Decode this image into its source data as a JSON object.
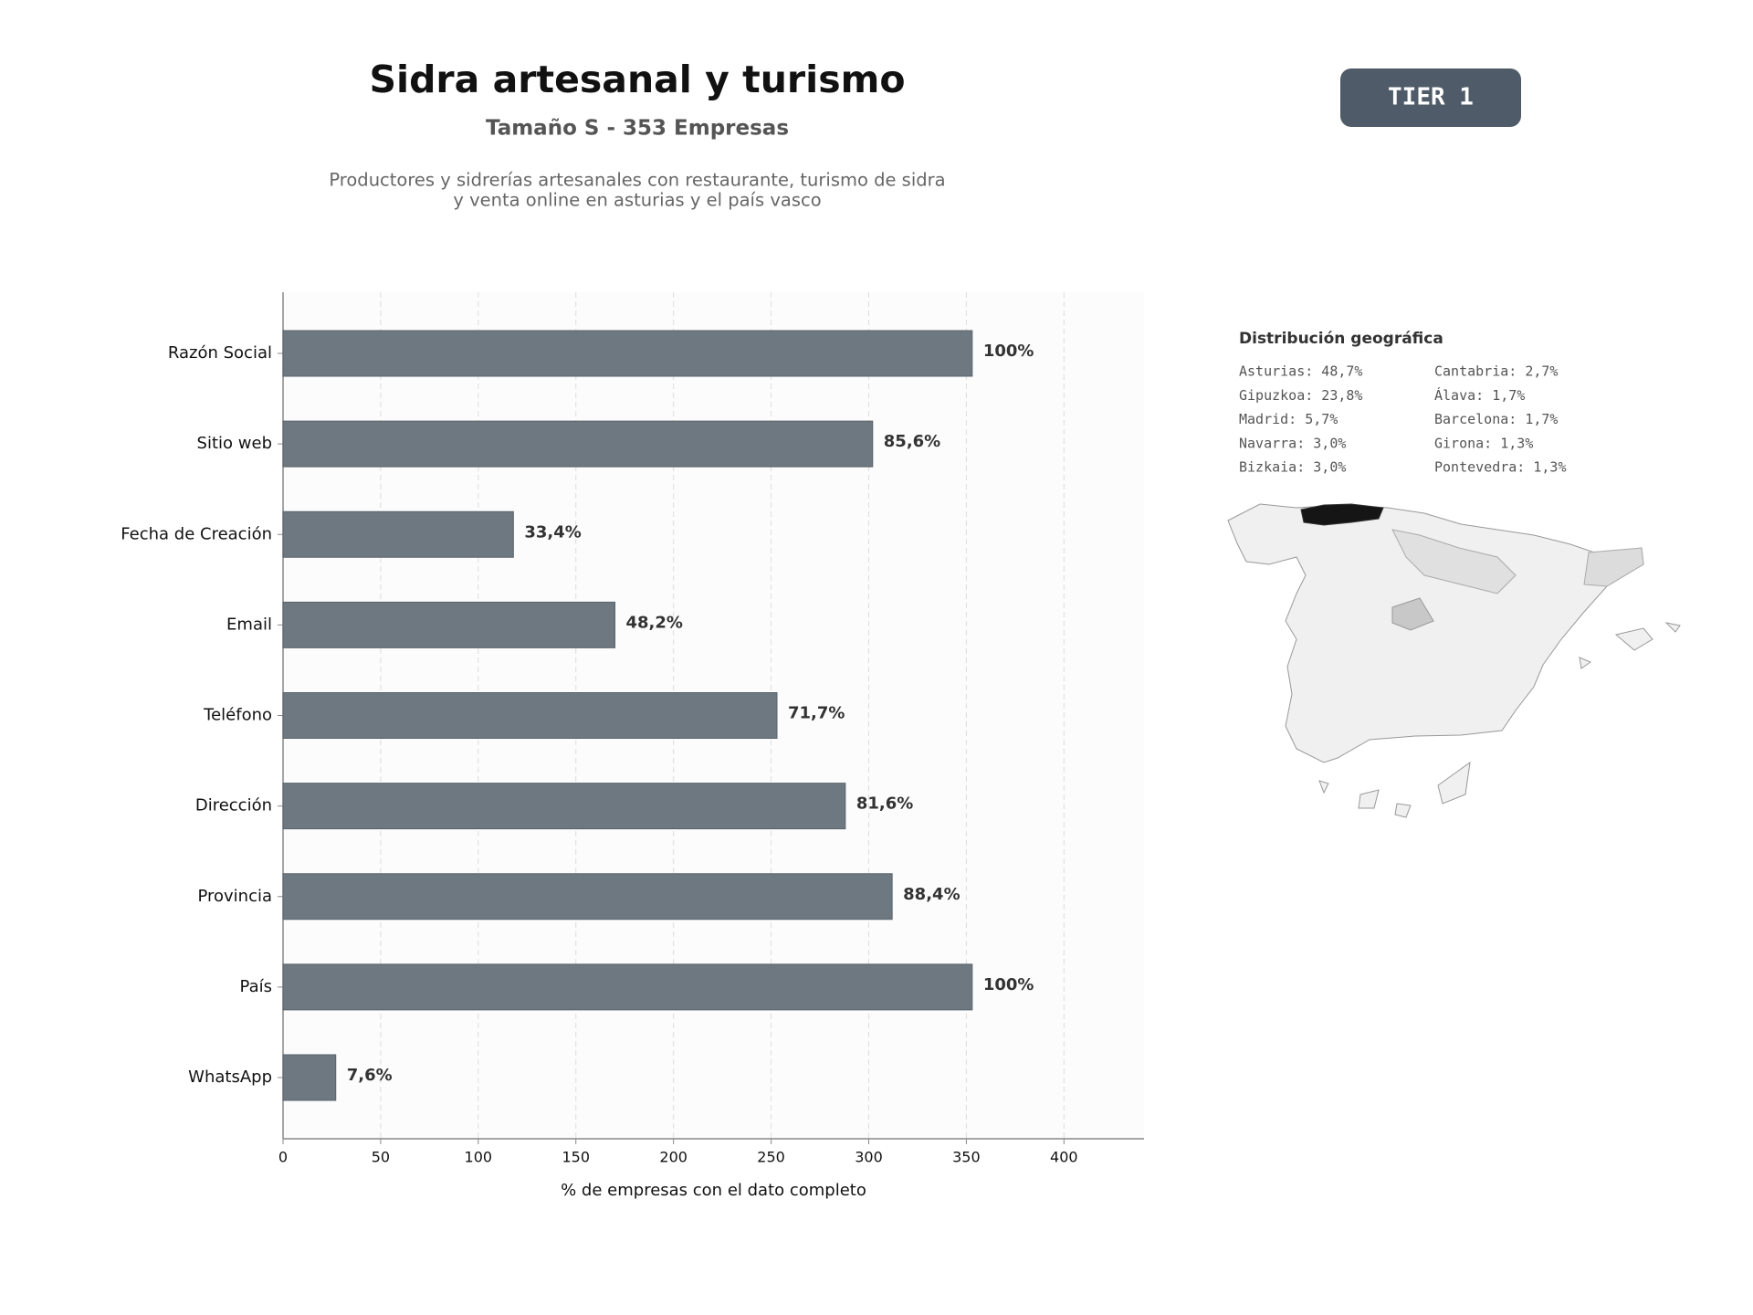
{
  "chart_data": {
    "type": "bar",
    "orientation": "horizontal",
    "title": "Sidra artesanal y turismo",
    "subtitle": "Tamaño S - 353 Empresas",
    "description": [
      "Productores y sidrerías artesanales con restaurante, turismo de sidra",
      "y venta online en asturias y el país vasco"
    ],
    "categories": [
      "Razón Social",
      "Sitio web",
      "Fecha de Creación",
      "Email",
      "Teléfono",
      "Dirección",
      "Provincia",
      "País",
      "WhatsApp"
    ],
    "values": [
      353,
      302,
      118,
      170,
      253,
      288,
      312,
      353,
      27
    ],
    "value_labels": [
      "100%",
      "85,6%",
      "33,4%",
      "48,2%",
      "71,7%",
      "81,6%",
      "88,4%",
      "100%",
      "7,6%"
    ],
    "color": "#6e7881",
    "xlim": [
      0,
      441
    ],
    "xticks": [
      0,
      50,
      100,
      150,
      200,
      250,
      300,
      350,
      400
    ],
    "xlabel": "% de empresas con el dato completo",
    "grid": true
  },
  "badge": "TIER 1",
  "geo": {
    "title": "Distribución geográfica",
    "items": [
      "Asturias: 48,7%",
      "Gipuzkoa: 23,8%",
      "Madrid: 5,7%",
      "Navarra: 3,0%",
      "Bizkaia: 3,0%",
      "Cantabria: 2,7%",
      "Álava: 1,7%",
      "Barcelona: 1,7%",
      "Girona: 1,3%",
      "Pontevedra: 1,3%"
    ]
  }
}
